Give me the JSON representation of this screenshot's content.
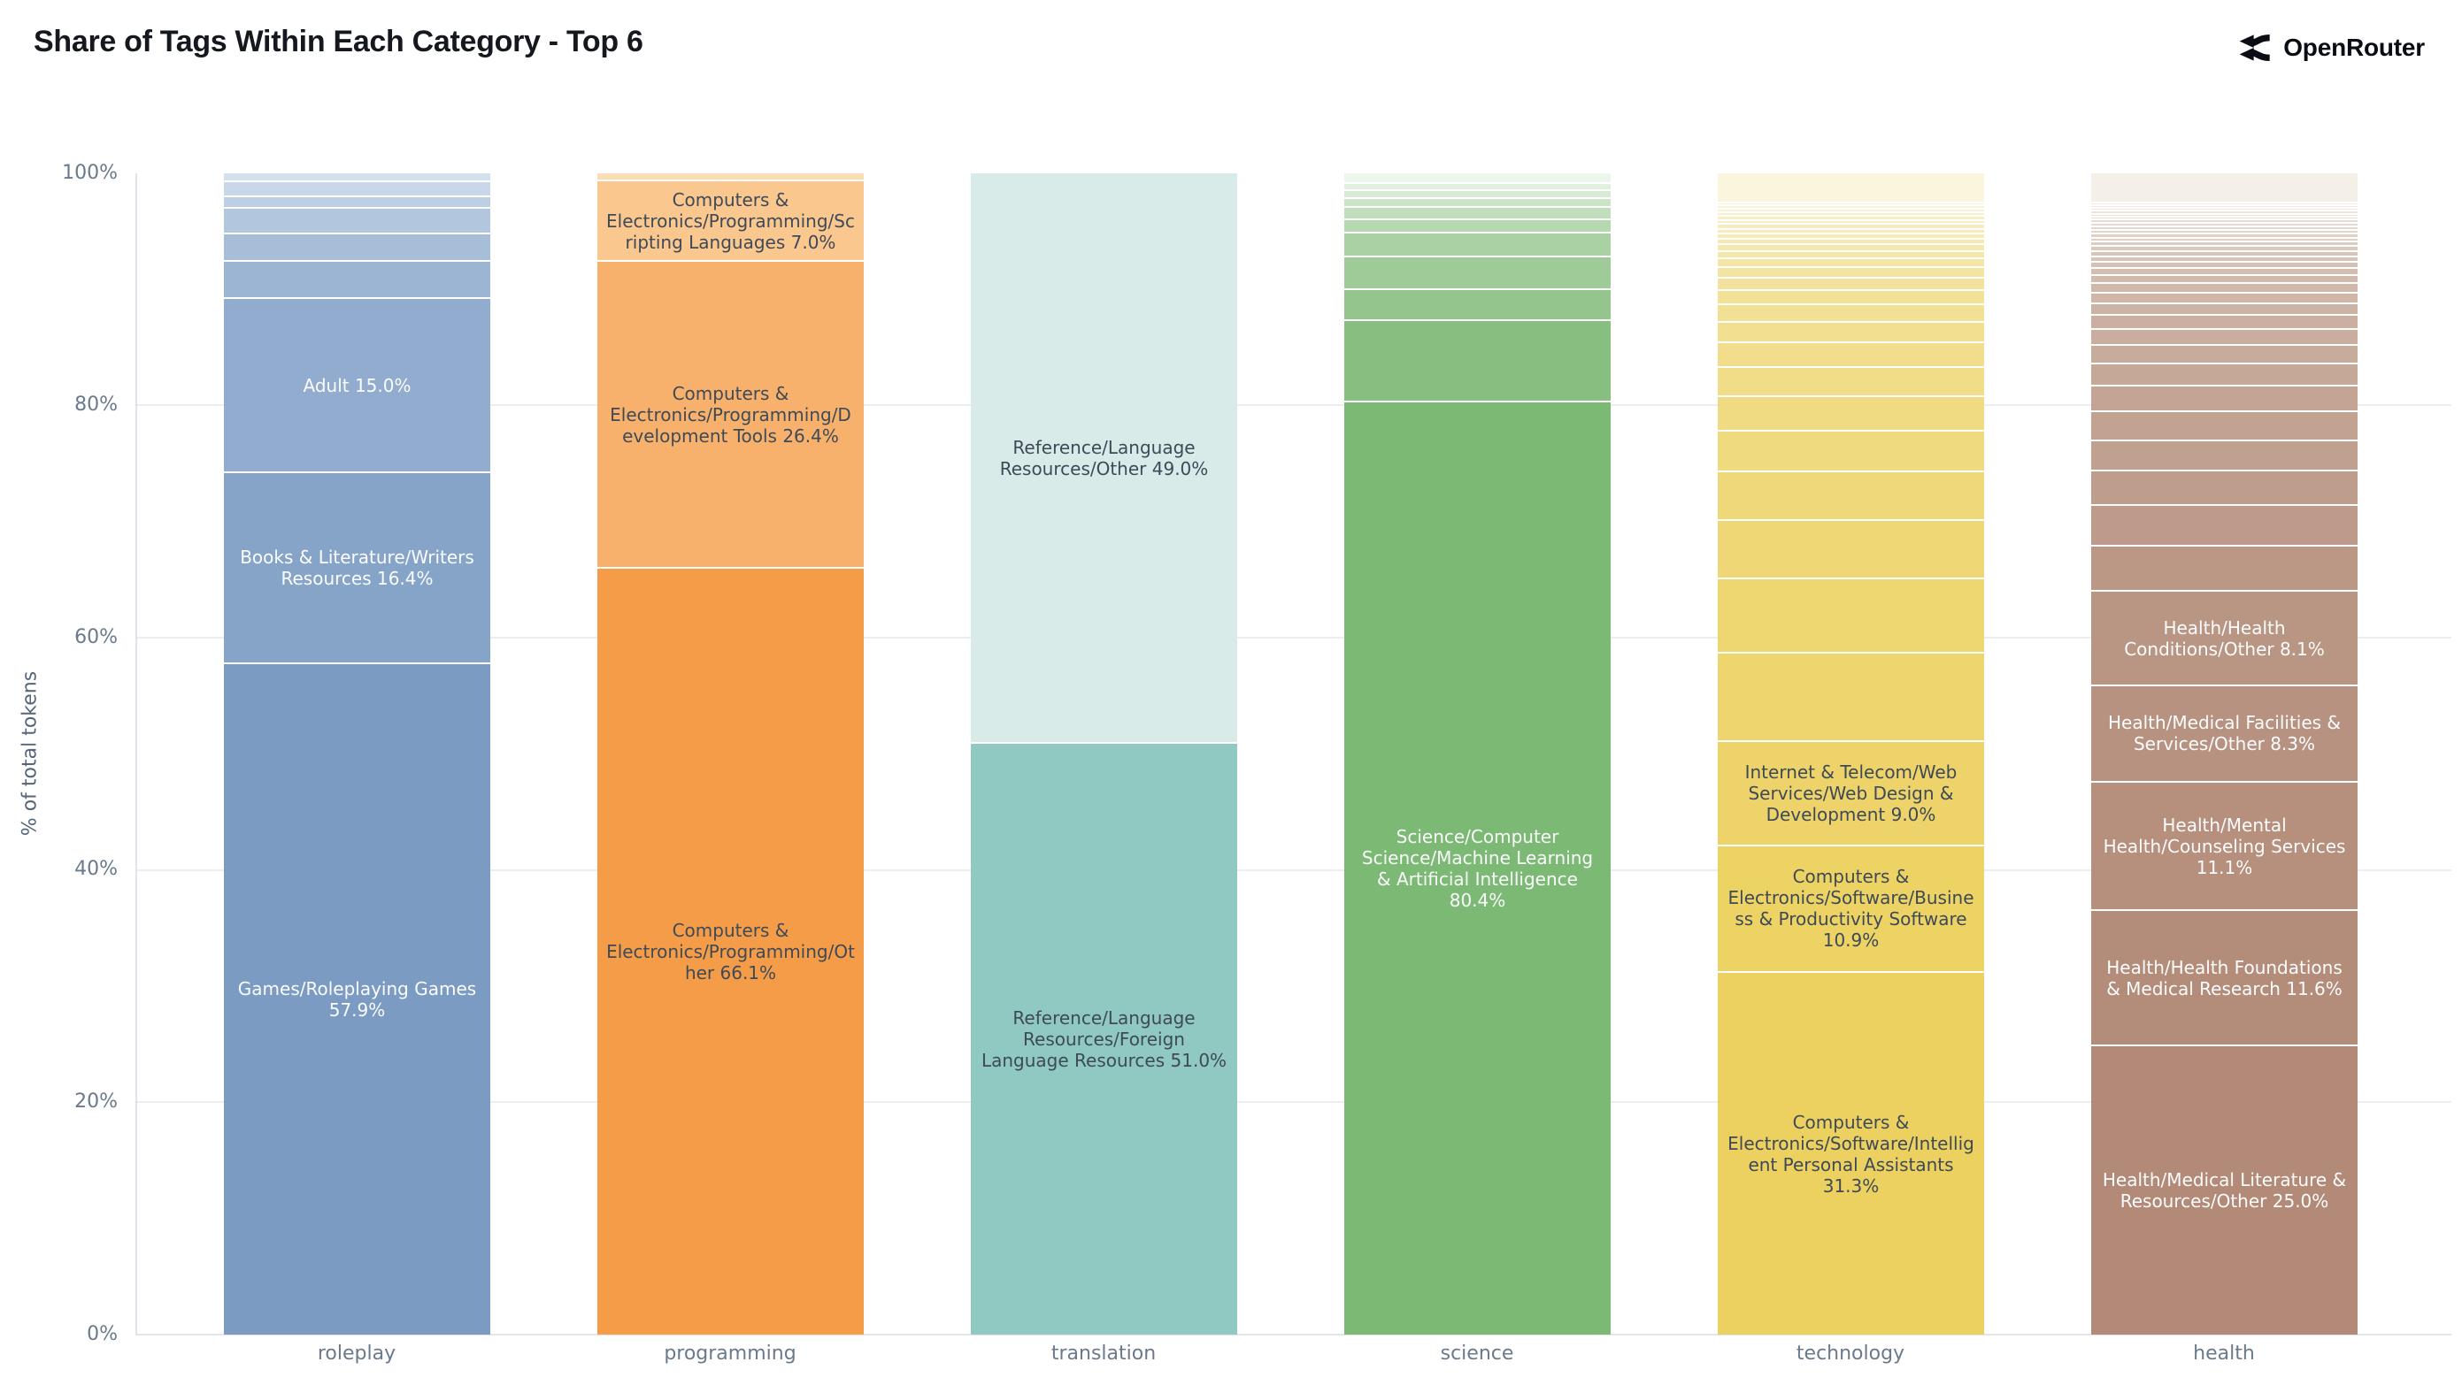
{
  "title": "Share of Tags Within Each Category - Top 6",
  "brand": {
    "name": "OpenRouter",
    "icon": "openrouter-fork-icon"
  },
  "y_axis": {
    "title": "% of total tokens",
    "ticks": [
      "100%",
      "80%",
      "60%",
      "40%",
      "20%",
      "0%"
    ]
  },
  "chart_data": {
    "type": "bar",
    "stacked": true,
    "percent_of_total": true,
    "ylim": [
      0,
      100
    ],
    "grid": "horizontal lines every 20%, no line at 100%",
    "legend": "none (labels drawn inside segments)",
    "segment_order": "top-to-bottom",
    "categories": [
      "roleplay",
      "programming",
      "translation",
      "science",
      "technology",
      "health"
    ],
    "bars": [
      {
        "category": "roleplay",
        "base_color": "#7b9bc3",
        "tint_color": "#d3e0ee",
        "label_text_color": "#fbfcfd",
        "segments": [
          {
            "value": 0.6
          },
          {
            "value": 1.3
          },
          {
            "value": 1.0
          },
          {
            "value": 2.2
          },
          {
            "value": 2.4
          },
          {
            "value": 3.2
          },
          {
            "value": 15.0,
            "label": "Adult 15.0%"
          },
          {
            "value": 16.4,
            "label": "Books & Literature/Writers Resources 16.4%"
          },
          {
            "value": 57.9,
            "label": "Games/Roleplaying Games 57.9%"
          }
        ]
      },
      {
        "category": "programming",
        "base_color": "#f59c49",
        "tint_color": "#fcdcb2",
        "label_text_color": "#3e4a57",
        "segments": [
          {
            "value": 0.5
          },
          {
            "value": 7.0,
            "label": "Computers & Electronics/Programming/Scripting Languages 7.0%"
          },
          {
            "value": 26.4,
            "label": "Computers & Electronics/Programming/Development Tools 26.4%"
          },
          {
            "value": 66.1,
            "label": "Computers & Electronics/Programming/Other 66.1%"
          }
        ]
      },
      {
        "category": "translation",
        "base_color": "#8fc9c1",
        "tint_color": "#d9ebe8",
        "label_text_color": "#3e4a57",
        "segments": [
          {
            "value": 49.0,
            "label": "Reference/Language Resources/Other 49.0%"
          },
          {
            "value": 51.0,
            "label": "Reference/Language Resources/Foreign Language Resources 51.0%"
          }
        ]
      },
      {
        "category": "science",
        "base_color": "#7cb974",
        "tint_color": "#edf6ec",
        "label_text_color": "#fbfcfd",
        "segments": [
          {
            "value": 0.75
          },
          {
            "value": 0.6
          },
          {
            "value": 0.7
          },
          {
            "value": 0.75
          },
          {
            "value": 1.1
          },
          {
            "value": 1.1
          },
          {
            "value": 2.1
          },
          {
            "value": 2.8
          },
          {
            "value": 2.7
          },
          {
            "value": 7.0
          },
          {
            "value": 80.4,
            "label": "Science/Computer Science/Machine Learning & Artificial Intelligence 80.4%"
          }
        ]
      },
      {
        "category": "technology",
        "base_color": "#ecd160",
        "tint_color": "#fbf5de",
        "label_text_color": "#3e4a57",
        "segments": [
          {
            "value": 2.4
          },
          {
            "value": 0.3
          },
          {
            "value": 0.3
          },
          {
            "value": 0.3
          },
          {
            "value": 0.3
          },
          {
            "value": 0.35
          },
          {
            "value": 0.35
          },
          {
            "value": 0.4
          },
          {
            "value": 0.4
          },
          {
            "value": 0.45
          },
          {
            "value": 0.5
          },
          {
            "value": 0.55
          },
          {
            "value": 0.65
          },
          {
            "value": 0.75
          },
          {
            "value": 0.9
          },
          {
            "value": 1.05
          },
          {
            "value": 1.25
          },
          {
            "value": 1.5
          },
          {
            "value": 1.8
          },
          {
            "value": 2.1
          },
          {
            "value": 2.5
          },
          {
            "value": 3.0
          },
          {
            "value": 3.5
          },
          {
            "value": 4.2
          },
          {
            "value": 5.0
          },
          {
            "value": 6.4
          },
          {
            "value": 7.6
          },
          {
            "value": 9.0,
            "label": "Internet & Telecom/Web Services/Web Design & Development 9.0%"
          },
          {
            "value": 10.9,
            "label": "Computers & Electronics/Software/Business & Productivity Software 10.9%"
          },
          {
            "value": 31.3,
            "label": "Computers & Electronics/Software/Intelligent Personal Assistants 31.3%"
          }
        ]
      },
      {
        "category": "health",
        "base_color": "#b28a77",
        "tint_color": "#f4efe7",
        "label_text_color": "#fbfcfd",
        "segments": [
          {
            "value": 2.4
          },
          {
            "value": 0.25
          },
          {
            "value": 0.25
          },
          {
            "value": 0.25
          },
          {
            "value": 0.25
          },
          {
            "value": 0.25
          },
          {
            "value": 0.25
          },
          {
            "value": 0.3
          },
          {
            "value": 0.3
          },
          {
            "value": 0.3
          },
          {
            "value": 0.3
          },
          {
            "value": 0.35
          },
          {
            "value": 0.35
          },
          {
            "value": 0.4
          },
          {
            "value": 0.4
          },
          {
            "value": 0.45
          },
          {
            "value": 0.5
          },
          {
            "value": 0.55
          },
          {
            "value": 0.6
          },
          {
            "value": 0.7
          },
          {
            "value": 0.8
          },
          {
            "value": 0.9
          },
          {
            "value": 1.0
          },
          {
            "value": 1.2
          },
          {
            "value": 1.4
          },
          {
            "value": 1.6
          },
          {
            "value": 1.9
          },
          {
            "value": 2.2
          },
          {
            "value": 2.5
          },
          {
            "value": 2.6
          },
          {
            "value": 3.0
          },
          {
            "value": 3.5
          },
          {
            "value": 3.9
          },
          {
            "value": 8.1,
            "label": "Health/Health Conditions/Other 8.1%"
          },
          {
            "value": 8.3,
            "label": "Health/Medical Facilities & Services/Other 8.3%"
          },
          {
            "value": 11.1,
            "label": "Health/Mental Health/Counseling Services 11.1%"
          },
          {
            "value": 11.6,
            "label": "Health/Health Foundations & Medical Research 11.6%"
          },
          {
            "value": 25.0,
            "label": "Health/Medical Literature & Resources/Other 25.0%"
          }
        ]
      }
    ]
  }
}
